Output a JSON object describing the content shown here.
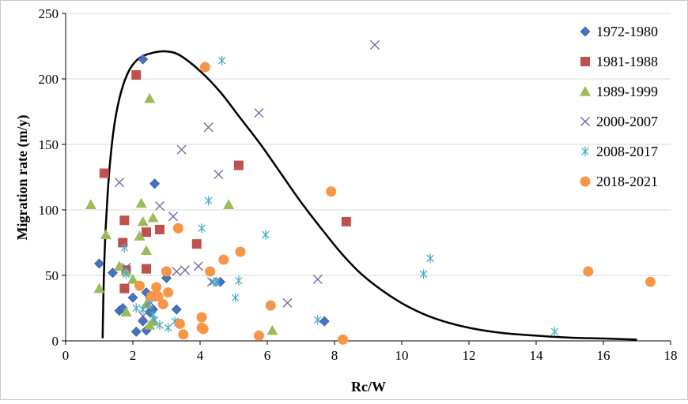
{
  "chart_data": {
    "type": "scatter",
    "title": "",
    "xlabel": "Rc/W",
    "ylabel": "Migration rate (m/y)",
    "xlim": [
      0,
      18
    ],
    "ylim": [
      0,
      250
    ],
    "x_ticks": [
      "0",
      "2",
      "4",
      "6",
      "8",
      "10",
      "12",
      "14",
      "16",
      "18"
    ],
    "y_ticks": [
      "0",
      "50",
      "100",
      "150",
      "200",
      "250"
    ],
    "grid": "horizontal",
    "legend_position": "right",
    "series": [
      {
        "name": "1972-1980",
        "marker": "diamond",
        "color": "#4472C4",
        "points": [
          [
            1,
            59
          ],
          [
            1.4,
            52
          ],
          [
            1.6,
            23
          ],
          [
            1.7,
            25
          ],
          [
            2,
            33
          ],
          [
            2.1,
            7
          ],
          [
            2.3,
            15
          ],
          [
            2.3,
            215
          ],
          [
            2.4,
            8
          ],
          [
            2.4,
            37
          ],
          [
            2.5,
            22
          ],
          [
            2.6,
            24
          ],
          [
            2.65,
            120
          ],
          [
            3,
            48
          ],
          [
            3.3,
            24
          ],
          [
            4.6,
            45
          ],
          [
            7.7,
            15
          ]
        ]
      },
      {
        "name": "1981-1988",
        "marker": "square",
        "color": "#C0504D",
        "points": [
          [
            1.15,
            128
          ],
          [
            1.7,
            75
          ],
          [
            1.75,
            92
          ],
          [
            1.75,
            40
          ],
          [
            1.8,
            54
          ],
          [
            2.1,
            203
          ],
          [
            2.4,
            83
          ],
          [
            2.4,
            55
          ],
          [
            2.6,
            34
          ],
          [
            2.8,
            85
          ],
          [
            3.9,
            74
          ],
          [
            5.15,
            134
          ],
          [
            8.35,
            91
          ]
        ]
      },
      {
        "name": "1989-1999",
        "marker": "triangle",
        "color": "#9BBB59",
        "points": [
          [
            0.75,
            104
          ],
          [
            1,
            40
          ],
          [
            1.2,
            81
          ],
          [
            1.6,
            57
          ],
          [
            1.8,
            22
          ],
          [
            1.8,
            53
          ],
          [
            2,
            47
          ],
          [
            2.2,
            80
          ],
          [
            2.25,
            105
          ],
          [
            2.3,
            91
          ],
          [
            2.4,
            69
          ],
          [
            2.4,
            28
          ],
          [
            2.5,
            185
          ],
          [
            2.5,
            12
          ],
          [
            2.6,
            94
          ],
          [
            2.6,
            15
          ],
          [
            4.85,
            104
          ],
          [
            6.15,
            8
          ]
        ]
      },
      {
        "name": "2000-2007",
        "marker": "x",
        "color": "#8064A2",
        "points": [
          [
            1.6,
            121
          ],
          [
            1.8,
            56
          ],
          [
            2.3,
            19
          ],
          [
            2.5,
            30
          ],
          [
            2.8,
            103
          ],
          [
            3.2,
            95
          ],
          [
            3.3,
            53
          ],
          [
            3.45,
            146
          ],
          [
            3.55,
            54
          ],
          [
            3.95,
            57
          ],
          [
            4.25,
            163
          ],
          [
            4.35,
            45
          ],
          [
            4.55,
            127
          ],
          [
            5.75,
            174
          ],
          [
            6.6,
            29
          ],
          [
            7.5,
            47
          ],
          [
            9.2,
            226
          ]
        ]
      },
      {
        "name": "2008-2017",
        "marker": "asterisk",
        "color": "#4BACC6",
        "points": [
          [
            1.75,
            71
          ],
          [
            1.8,
            51
          ],
          [
            2.1,
            25
          ],
          [
            2.3,
            24
          ],
          [
            2.5,
            28
          ],
          [
            2.6,
            20
          ],
          [
            2.65,
            16
          ],
          [
            2.8,
            12
          ],
          [
            3.05,
            10
          ],
          [
            3.25,
            15
          ],
          [
            4.05,
            86
          ],
          [
            4.25,
            107
          ],
          [
            4.4,
            45
          ],
          [
            4.5,
            45
          ],
          [
            4.65,
            214
          ],
          [
            5.05,
            33
          ],
          [
            5.15,
            46
          ],
          [
            5.95,
            81
          ],
          [
            7.5,
            16
          ],
          [
            10.65,
            51
          ],
          [
            10.85,
            63
          ],
          [
            14.55,
            7
          ]
        ]
      },
      {
        "name": "2018-2021",
        "marker": "circle",
        "color": "#F79646",
        "points": [
          [
            2.2,
            42
          ],
          [
            2.55,
            34
          ],
          [
            2.7,
            41
          ],
          [
            2.75,
            34
          ],
          [
            2.9,
            28
          ],
          [
            3,
            53
          ],
          [
            3.05,
            37
          ],
          [
            3.35,
            86
          ],
          [
            3.4,
            13
          ],
          [
            3.5,
            5
          ],
          [
            4.05,
            18
          ],
          [
            4.05,
            10
          ],
          [
            4.1,
            9
          ],
          [
            4.15,
            209
          ],
          [
            4.3,
            53
          ],
          [
            4.7,
            62
          ],
          [
            5.2,
            68
          ],
          [
            5.75,
            4
          ],
          [
            6.1,
            27
          ],
          [
            7.9,
            114
          ],
          [
            8.25,
            1
          ],
          [
            15.55,
            53
          ],
          [
            17.4,
            45
          ]
        ]
      }
    ],
    "curve": {
      "color": "#000000",
      "points": [
        [
          1.1,
          2
        ],
        [
          1.12,
          30
        ],
        [
          1.15,
          60
        ],
        [
          1.2,
          90
        ],
        [
          1.3,
          130
        ],
        [
          1.45,
          165
        ],
        [
          1.65,
          190
        ],
        [
          1.9,
          207
        ],
        [
          2.2,
          216
        ],
        [
          2.6,
          220
        ],
        [
          3,
          221
        ],
        [
          3.4,
          218
        ],
        [
          4,
          206
        ],
        [
          4.6,
          190
        ],
        [
          5.2,
          170
        ],
        [
          5.8,
          150
        ],
        [
          6.4,
          128
        ],
        [
          7,
          106
        ],
        [
          7.6,
          86
        ],
        [
          8.2,
          67
        ],
        [
          8.8,
          51
        ],
        [
          9.5,
          37
        ],
        [
          10.2,
          26
        ],
        [
          11,
          17
        ],
        [
          12,
          10
        ],
        [
          13,
          6
        ],
        [
          14,
          4
        ],
        [
          15,
          2.5
        ],
        [
          16,
          1.8
        ],
        [
          17,
          1
        ]
      ]
    }
  }
}
